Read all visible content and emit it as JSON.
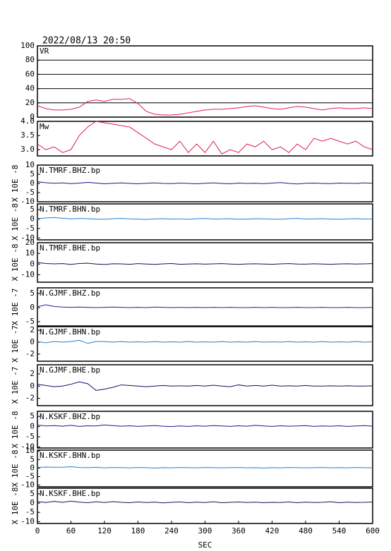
{
  "title": "2022/08/13 20:50",
  "chart_data": [
    {
      "type": "line",
      "label": "VR",
      "color": "#e0204a",
      "ylim": [
        0,
        100
      ],
      "yticks": [
        0,
        20,
        40,
        60,
        80,
        100
      ],
      "grid": true,
      "xlim": [
        0,
        600
      ],
      "x": [
        0,
        15,
        30,
        45,
        60,
        75,
        90,
        105,
        120,
        135,
        150,
        165,
        180,
        195,
        210,
        225,
        240,
        255,
        270,
        285,
        300,
        315,
        330,
        345,
        360,
        375,
        390,
        405,
        420,
        435,
        450,
        465,
        480,
        495,
        510,
        525,
        540,
        555,
        570,
        585,
        600
      ],
      "values": [
        16,
        12,
        10,
        10,
        11,
        14,
        22,
        24,
        22,
        25,
        25,
        26,
        19,
        8,
        4,
        3,
        3,
        4,
        6,
        8,
        10,
        11,
        11,
        12,
        13,
        15,
        16,
        14,
        12,
        11,
        13,
        15,
        14,
        12,
        10,
        12,
        13,
        12,
        12,
        13,
        12
      ]
    },
    {
      "type": "line",
      "label": "Mw",
      "color": "#e0204a",
      "ylim": [
        2.78,
        4.0
      ],
      "yticks": [
        {
          "value": 3,
          "label": "3.0"
        },
        3.5,
        {
          "value": 4,
          "label": "4.0"
        }
      ],
      "grid": false,
      "xlim": [
        0,
        600
      ],
      "x": [
        0,
        15,
        30,
        45,
        60,
        75,
        90,
        105,
        120,
        135,
        150,
        165,
        180,
        195,
        210,
        225,
        240,
        255,
        270,
        285,
        300,
        315,
        330,
        345,
        360,
        375,
        390,
        405,
        420,
        435,
        450,
        465,
        480,
        495,
        510,
        525,
        540,
        555,
        570,
        585,
        600
      ],
      "values": [
        3.2,
        3.0,
        3.1,
        2.9,
        3.0,
        3.5,
        3.8,
        4.0,
        3.95,
        3.9,
        3.85,
        3.8,
        3.6,
        3.4,
        3.2,
        3.1,
        3.0,
        3.3,
        2.9,
        3.2,
        2.9,
        3.3,
        2.85,
        3.0,
        2.9,
        3.2,
        3.1,
        3.3,
        3.0,
        3.1,
        2.9,
        3.2,
        3.0,
        3.4,
        3.3,
        3.4,
        3.3,
        3.2,
        3.3,
        3.1,
        3.0
      ]
    },
    {
      "type": "line",
      "label": "N.TMRF.BHZ.bp",
      "ylabel": "X 10E -8",
      "color": "#1a1a8c",
      "ylim": [
        -10,
        10
      ],
      "yticks": [
        -10,
        -5,
        0,
        5,
        10
      ],
      "grid": false,
      "xlim": [
        0,
        600
      ],
      "x": [
        0,
        15,
        30,
        45,
        60,
        75,
        90,
        105,
        120,
        135,
        150,
        165,
        180,
        195,
        210,
        225,
        240,
        255,
        270,
        285,
        300,
        315,
        330,
        345,
        360,
        375,
        390,
        405,
        420,
        435,
        450,
        465,
        480,
        495,
        510,
        525,
        540,
        555,
        570,
        585,
        600
      ],
      "values": [
        0.9,
        0.4,
        0.1,
        0.3,
        -0.1,
        0.2,
        0.6,
        0.2,
        -0.2,
        0.1,
        0.3,
        0,
        -0.2,
        0.1,
        0.3,
        0,
        -0.1,
        0.2,
        0,
        -0.2,
        0.1,
        0.3,
        0,
        -0.2,
        0.2,
        0,
        0.1,
        -0.1,
        0.2,
        0.5,
        0,
        -0.3,
        0.1,
        0.2,
        0,
        -0.1,
        0.2,
        0.1,
        0,
        0.3,
        0.1
      ]
    },
    {
      "type": "line",
      "label": "N.TMRF.BHN.bp",
      "ylabel": "X 10E -8",
      "color": "#2080d0",
      "ylim": [
        -11,
        8
      ],
      "yticks": [
        -10,
        -5,
        0,
        5
      ],
      "grid": false,
      "xlim": [
        0,
        600
      ],
      "x": [
        0,
        15,
        30,
        45,
        60,
        75,
        90,
        105,
        120,
        135,
        150,
        165,
        180,
        195,
        210,
        225,
        240,
        255,
        270,
        285,
        300,
        315,
        330,
        345,
        360,
        375,
        390,
        405,
        420,
        435,
        450,
        465,
        480,
        495,
        510,
        525,
        540,
        555,
        570,
        585,
        600
      ],
      "values": [
        0.2,
        0.6,
        0.8,
        0.4,
        0.1,
        0.3,
        0.2,
        0,
        -0.1,
        0.2,
        0.3,
        0.1,
        0,
        -0.2,
        0.1,
        0.2,
        0,
        0.1,
        -0.1,
        0.2,
        0.3,
        0,
        0.1,
        0.2,
        -0.1,
        0,
        0.2,
        0.1,
        0,
        -0.1,
        0.2,
        0.3,
        0,
        0.1,
        0.2,
        0,
        -0.1,
        0.1,
        0.2,
        0,
        0.1
      ]
    },
    {
      "type": "line",
      "label": "N.TMRF.BHE.bp",
      "ylabel": "X 10E -8",
      "color": "#101060",
      "ylim": [
        -17,
        20
      ],
      "yticks": [
        -10,
        0,
        10,
        20
      ],
      "grid": false,
      "xlim": [
        0,
        600
      ],
      "x": [
        0,
        15,
        30,
        45,
        60,
        75,
        90,
        105,
        120,
        135,
        150,
        165,
        180,
        195,
        210,
        225,
        240,
        255,
        270,
        285,
        300,
        315,
        330,
        345,
        360,
        375,
        390,
        405,
        420,
        435,
        450,
        465,
        480,
        495,
        510,
        525,
        540,
        555,
        570,
        585,
        600
      ],
      "values": [
        1.5,
        0.5,
        0.2,
        0.4,
        -0.3,
        0.5,
        0.8,
        0,
        -0.4,
        0.3,
        0.2,
        -0.2,
        0.4,
        0,
        -0.3,
        0.2,
        0.5,
        -0.2,
        0,
        0.3,
        -0.1,
        0.2,
        0.4,
        0,
        -0.3,
        0.1,
        0.3,
        0,
        -0.2,
        0.2,
        0.4,
        0,
        -0.1,
        0.3,
        0,
        -0.2,
        0.1,
        0.3,
        0,
        0.2,
        0.4
      ]
    },
    {
      "type": "line",
      "label": "N.GJMF.BHZ.bp",
      "ylabel": "X 10E -7",
      "color": "#2020a0",
      "ylim": [
        -6.5,
        7
      ],
      "yticks": [
        -5,
        0,
        5
      ],
      "grid": false,
      "xlim": [
        0,
        600
      ],
      "x": [
        0,
        15,
        30,
        45,
        60,
        75,
        90,
        105,
        120,
        135,
        150,
        165,
        180,
        195,
        210,
        225,
        240,
        255,
        270,
        285,
        300,
        315,
        330,
        345,
        360,
        375,
        390,
        405,
        420,
        435,
        450,
        465,
        480,
        495,
        510,
        525,
        540,
        555,
        570,
        585,
        600
      ],
      "values": [
        0.3,
        1.0,
        0.4,
        0.2,
        0.1,
        0.2,
        0.1,
        0,
        0.1,
        0.2,
        0.1,
        0,
        0.1,
        0,
        0.2,
        0.1,
        0,
        0.1,
        0,
        0.1,
        0,
        0.1,
        0,
        0.1,
        0,
        0,
        0.1,
        0,
        0.1,
        0,
        0,
        0.1,
        0,
        0,
        0.1,
        0,
        0,
        0.1,
        0,
        0,
        0.1
      ]
    },
    {
      "type": "line",
      "label": "N.GJMF.BHN.bp",
      "ylabel": "X 10E -7",
      "color": "#2080d0",
      "ylim": [
        -3.2,
        2.6
      ],
      "yticks": [
        -2,
        0,
        2
      ],
      "grid": false,
      "xlim": [
        0,
        600
      ],
      "x": [
        0,
        15,
        30,
        45,
        60,
        75,
        90,
        105,
        120,
        135,
        150,
        165,
        180,
        195,
        210,
        225,
        240,
        255,
        270,
        285,
        300,
        315,
        330,
        345,
        360,
        375,
        390,
        405,
        420,
        435,
        450,
        465,
        480,
        495,
        510,
        525,
        540,
        555,
        570,
        585,
        600
      ],
      "values": [
        0.1,
        -0.1,
        0.1,
        0,
        0.1,
        0.3,
        -0.2,
        0.1,
        0.1,
        0,
        0.1,
        0,
        0.05,
        0,
        0.1,
        0,
        0.05,
        0,
        0.1,
        0,
        0.05,
        0,
        0.1,
        0,
        0.05,
        0,
        0.1,
        0,
        0.05,
        0,
        0.1,
        0,
        0.05,
        0,
        0.1,
        0,
        0.05,
        0,
        0.1,
        0,
        0.05
      ]
    },
    {
      "type": "line",
      "label": "N.GJMF.BHE.bp",
      "ylabel": "X 10E -7",
      "color": "#101060",
      "ylim": [
        -3.2,
        3.5
      ],
      "yticks": [
        -2,
        0,
        2
      ],
      "grid": false,
      "xlim": [
        0,
        600
      ],
      "x": [
        0,
        15,
        30,
        45,
        60,
        75,
        90,
        105,
        120,
        135,
        150,
        165,
        180,
        195,
        210,
        225,
        240,
        255,
        270,
        285,
        300,
        315,
        330,
        345,
        360,
        375,
        390,
        405,
        420,
        435,
        450,
        465,
        480,
        495,
        510,
        525,
        540,
        555,
        570,
        585,
        600
      ],
      "values": [
        0.3,
        0.1,
        -0.1,
        0,
        0.3,
        0.7,
        0.4,
        -0.7,
        -0.5,
        -0.2,
        0.2,
        0.1,
        0,
        -0.1,
        0,
        0.1,
        0,
        0.05,
        0,
        0.1,
        0,
        0.15,
        0,
        -0.1,
        0.2,
        0,
        0.1,
        0,
        0.15,
        0,
        0.05,
        0,
        0.1,
        0,
        0,
        0.05,
        0,
        0.05,
        0,
        0,
        0.05
      ]
    },
    {
      "type": "line",
      "label": "N.KSKF.BHZ.bp",
      "ylabel": "X 10E -8",
      "color": "#1a1a8c",
      "ylim": [
        -10.5,
        7.5
      ],
      "yticks": [
        -10,
        -5,
        0,
        5
      ],
      "grid": false,
      "xlim": [
        0,
        600
      ],
      "x": [
        0,
        15,
        30,
        45,
        60,
        75,
        90,
        105,
        120,
        135,
        150,
        165,
        180,
        195,
        210,
        225,
        240,
        255,
        270,
        285,
        300,
        315,
        330,
        345,
        360,
        375,
        390,
        405,
        420,
        435,
        450,
        465,
        480,
        495,
        510,
        525,
        540,
        555,
        570,
        585,
        600
      ],
      "values": [
        0.8,
        0.3,
        0.5,
        0.2,
        0.6,
        0.1,
        0.4,
        0.3,
        0.8,
        0.5,
        0.2,
        0.4,
        0.1,
        0.3,
        0.5,
        0.2,
        0,
        0.3,
        0.1,
        0.4,
        0.2,
        0.5,
        0.3,
        0.1,
        0.4,
        0.2,
        0.6,
        0.3,
        0.1,
        0.4,
        0.2,
        0.3,
        0.5,
        0.1,
        0.3,
        0.2,
        0.4,
        0.1,
        0.3,
        0.5,
        0.2
      ]
    },
    {
      "type": "line",
      "label": "N.KSKF.BHN.bp",
      "ylabel": "X 10E -8",
      "color": "#2080d0",
      "ylim": [
        -11,
        10.5
      ],
      "yticks": [
        -10,
        -5,
        0,
        5,
        10
      ],
      "grid": false,
      "xlim": [
        0,
        600
      ],
      "x": [
        0,
        15,
        30,
        45,
        60,
        75,
        90,
        105,
        120,
        135,
        150,
        165,
        180,
        195,
        210,
        225,
        240,
        255,
        270,
        285,
        300,
        315,
        330,
        345,
        360,
        375,
        390,
        405,
        420,
        435,
        450,
        465,
        480,
        495,
        510,
        525,
        540,
        555,
        570,
        585,
        600
      ],
      "values": [
        0.3,
        0.6,
        0.4,
        0.5,
        0.8,
        0.3,
        0.2,
        0.4,
        0.1,
        0.3,
        0.2,
        0.1,
        0.3,
        0.2,
        0,
        0.2,
        0.1,
        0.3,
        0.2,
        0.1,
        0.3,
        0.2,
        0.1,
        0.2,
        0.3,
        0.1,
        0.2,
        0,
        0.2,
        0.1,
        0.3,
        0.2,
        0.1,
        0.2,
        0.3,
        0.1,
        0.2,
        0.1,
        0.3,
        0.2,
        0.1
      ]
    },
    {
      "type": "line",
      "label": "N.KSKF.BHE.bp",
      "ylabel": "X 10E -8",
      "color": "#101060",
      "ylim": [
        -11,
        8
      ],
      "yticks": [
        -10,
        -5,
        0,
        5
      ],
      "grid": false,
      "xlim": [
        0,
        600
      ],
      "x": [
        0,
        15,
        30,
        45,
        60,
        75,
        90,
        105,
        120,
        135,
        150,
        165,
        180,
        195,
        210,
        225,
        240,
        255,
        270,
        285,
        300,
        315,
        330,
        345,
        360,
        375,
        390,
        405,
        420,
        435,
        450,
        465,
        480,
        495,
        510,
        525,
        540,
        555,
        570,
        585,
        600
      ],
      "values": [
        0.8,
        0.3,
        0.9,
        0.4,
        1.0,
        0.5,
        0.2,
        0.7,
        0.3,
        0.8,
        0.4,
        0.2,
        0.6,
        0.3,
        0.5,
        0.1,
        0.4,
        0.6,
        0.2,
        0.5,
        0.3,
        0.7,
        0.2,
        0.4,
        0.6,
        0.3,
        0.5,
        0.2,
        0.4,
        0.3,
        0.6,
        0.2,
        0.5,
        0.3,
        0.4,
        0.7,
        0.2,
        0.5,
        0.3,
        0.4,
        0.6
      ],
      "xticks": [
        0,
        60,
        120,
        180,
        240,
        300,
        360,
        420,
        480,
        540,
        600
      ],
      "xlabel": "SEC"
    }
  ]
}
